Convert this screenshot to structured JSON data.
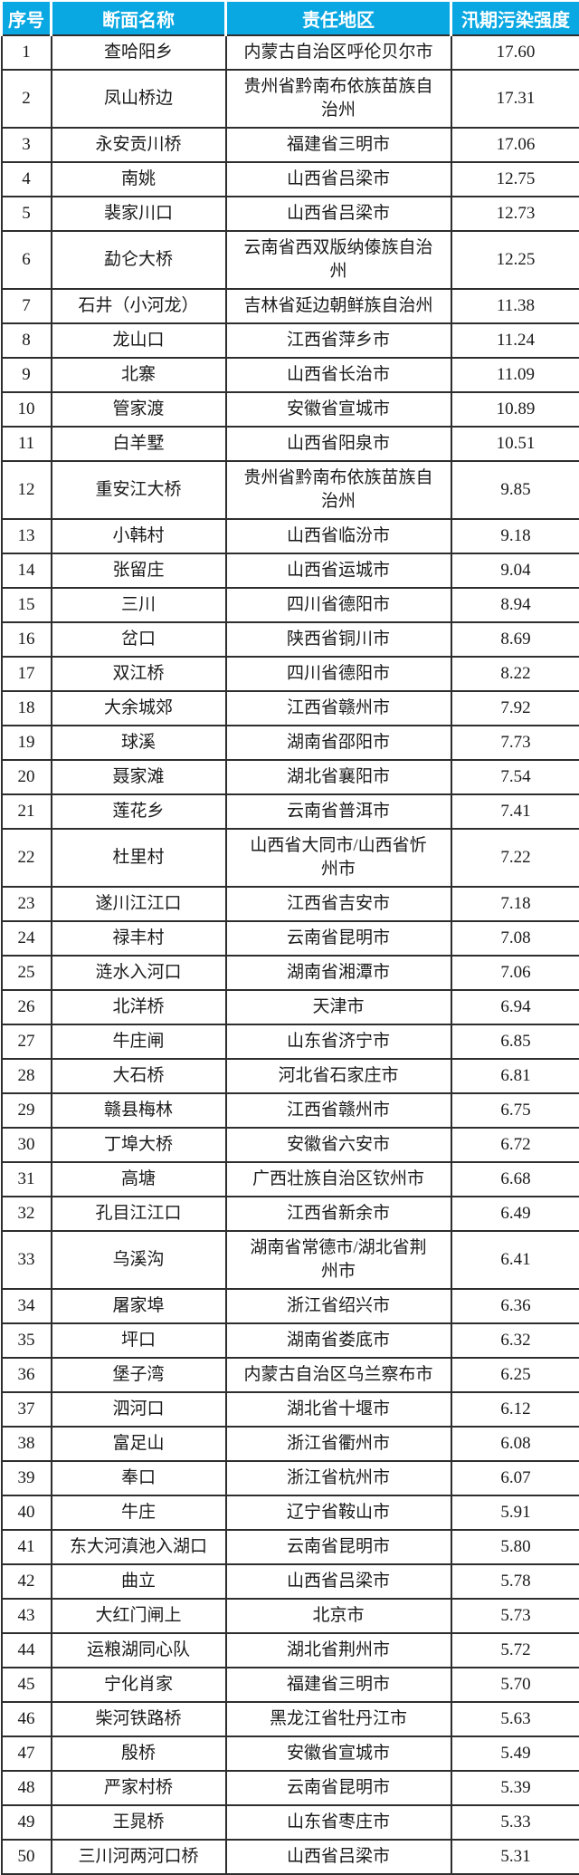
{
  "colors": {
    "header_bg": "#0AA8E2",
    "header_text": "#FFFFFF",
    "body_text": "#1A1A1A",
    "border": "#2E2E2E",
    "row_bg": "#FFFFFF"
  },
  "table": {
    "headers": [
      "序号",
      "断面名称",
      "责任地区",
      "汛期污染强度"
    ],
    "rows": [
      {
        "rank": "1",
        "name": "查哈阳乡",
        "region": "内蒙古自治区呼伦贝尔市",
        "value": "17.60"
      },
      {
        "rank": "2",
        "name": "凤山桥边",
        "region": "贵州省黔南布依族苗族自治州",
        "value": "17.31"
      },
      {
        "rank": "3",
        "name": "永安贡川桥",
        "region": "福建省三明市",
        "value": "17.06"
      },
      {
        "rank": "4",
        "name": "南姚",
        "region": "山西省吕梁市",
        "value": "12.75"
      },
      {
        "rank": "5",
        "name": "裴家川口",
        "region": "山西省吕梁市",
        "value": "12.73"
      },
      {
        "rank": "6",
        "name": "勐仑大桥",
        "region": "云南省西双版纳傣族自治州",
        "value": "12.25"
      },
      {
        "rank": "7",
        "name": "石井（小河龙）",
        "region": "吉林省延边朝鲜族自治州",
        "value": "11.38"
      },
      {
        "rank": "8",
        "name": "龙山口",
        "region": "江西省萍乡市",
        "value": "11.24"
      },
      {
        "rank": "9",
        "name": "北寨",
        "region": "山西省长治市",
        "value": "11.09"
      },
      {
        "rank": "10",
        "name": "管家渡",
        "region": "安徽省宣城市",
        "value": "10.89"
      },
      {
        "rank": "11",
        "name": "白羊墅",
        "region": "山西省阳泉市",
        "value": "10.51"
      },
      {
        "rank": "12",
        "name": "重安江大桥",
        "region": "贵州省黔南布依族苗族自治州",
        "value": "9.85"
      },
      {
        "rank": "13",
        "name": "小韩村",
        "region": "山西省临汾市",
        "value": "9.18"
      },
      {
        "rank": "14",
        "name": "张留庄",
        "region": "山西省运城市",
        "value": "9.04"
      },
      {
        "rank": "15",
        "name": "三川",
        "region": "四川省德阳市",
        "value": "8.94"
      },
      {
        "rank": "16",
        "name": "岔口",
        "region": "陕西省铜川市",
        "value": "8.69"
      },
      {
        "rank": "17",
        "name": "双江桥",
        "region": "四川省德阳市",
        "value": "8.22"
      },
      {
        "rank": "18",
        "name": "大余城郊",
        "region": "江西省赣州市",
        "value": "7.92"
      },
      {
        "rank": "19",
        "name": "球溪",
        "region": "湖南省邵阳市",
        "value": "7.73"
      },
      {
        "rank": "20",
        "name": "聂家滩",
        "region": "湖北省襄阳市",
        "value": "7.54"
      },
      {
        "rank": "21",
        "name": "莲花乡",
        "region": "云南省普洱市",
        "value": "7.41"
      },
      {
        "rank": "22",
        "name": "杜里村",
        "region": "山西省大同市/山西省忻州市",
        "value": "7.22"
      },
      {
        "rank": "23",
        "name": "遂川江江口",
        "region": "江西省吉安市",
        "value": "7.18"
      },
      {
        "rank": "24",
        "name": "禄丰村",
        "region": "云南省昆明市",
        "value": "7.08"
      },
      {
        "rank": "25",
        "name": "涟水入河口",
        "region": "湖南省湘潭市",
        "value": "7.06"
      },
      {
        "rank": "26",
        "name": "北洋桥",
        "region": "天津市",
        "value": "6.94"
      },
      {
        "rank": "27",
        "name": "牛庄闸",
        "region": "山东省济宁市",
        "value": "6.85"
      },
      {
        "rank": "28",
        "name": "大石桥",
        "region": "河北省石家庄市",
        "value": "6.81"
      },
      {
        "rank": "29",
        "name": "赣县梅林",
        "region": "江西省赣州市",
        "value": "6.75"
      },
      {
        "rank": "30",
        "name": "丁埠大桥",
        "region": "安徽省六安市",
        "value": "6.72"
      },
      {
        "rank": "31",
        "name": "高塘",
        "region": "广西壮族自治区钦州市",
        "value": "6.68"
      },
      {
        "rank": "32",
        "name": "孔目江江口",
        "region": "江西省新余市",
        "value": "6.49"
      },
      {
        "rank": "33",
        "name": "乌溪沟",
        "region": "湖南省常德市/湖北省荆州市",
        "value": "6.41"
      },
      {
        "rank": "34",
        "name": "屠家埠",
        "region": "浙江省绍兴市",
        "value": "6.36"
      },
      {
        "rank": "35",
        "name": "坪口",
        "region": "湖南省娄底市",
        "value": "6.32"
      },
      {
        "rank": "36",
        "name": "堡子湾",
        "region": "内蒙古自治区乌兰察布市",
        "value": "6.25"
      },
      {
        "rank": "37",
        "name": "泗河口",
        "region": "湖北省十堰市",
        "value": "6.12"
      },
      {
        "rank": "38",
        "name": "富足山",
        "region": "浙江省衢州市",
        "value": "6.08"
      },
      {
        "rank": "39",
        "name": "奉口",
        "region": "浙江省杭州市",
        "value": "6.07"
      },
      {
        "rank": "40",
        "name": "牛庄",
        "region": "辽宁省鞍山市",
        "value": "5.91"
      },
      {
        "rank": "41",
        "name": "东大河滇池入湖口",
        "region": "云南省昆明市",
        "value": "5.80"
      },
      {
        "rank": "42",
        "name": "曲立",
        "region": "山西省吕梁市",
        "value": "5.78"
      },
      {
        "rank": "43",
        "name": "大红门闸上",
        "region": "北京市",
        "value": "5.73"
      },
      {
        "rank": "44",
        "name": "运粮湖同心队",
        "region": "湖北省荆州市",
        "value": "5.72"
      },
      {
        "rank": "45",
        "name": "宁化肖家",
        "region": "福建省三明市",
        "value": "5.70"
      },
      {
        "rank": "46",
        "name": "柴河铁路桥",
        "region": "黑龙江省牡丹江市",
        "value": "5.63"
      },
      {
        "rank": "47",
        "name": "殷桥",
        "region": "安徽省宣城市",
        "value": "5.49"
      },
      {
        "rank": "48",
        "name": "严家村桥",
        "region": "云南省昆明市",
        "value": "5.39"
      },
      {
        "rank": "49",
        "name": "王晁桥",
        "region": "山东省枣庄市",
        "value": "5.33"
      },
      {
        "rank": "50",
        "name": "三川河两河口桥",
        "region": "山西省吕梁市",
        "value": "5.31"
      }
    ]
  }
}
